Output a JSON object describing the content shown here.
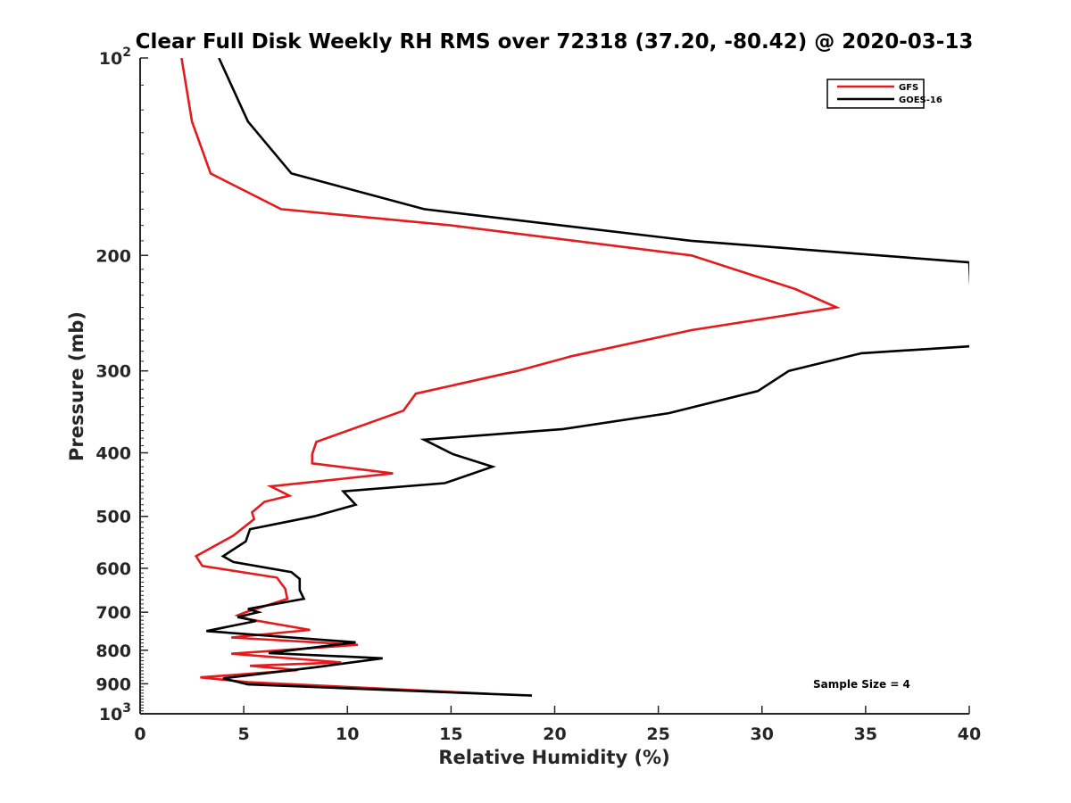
{
  "chart_data": {
    "type": "line",
    "title": "Clear Full Disk Weekly RH RMS over 72318 (37.20, -80.42) @ 2020-03-13",
    "xlabel": "Relative Humidity (%)",
    "ylabel": "Pressure (mb)",
    "xlim": [
      0,
      40
    ],
    "ylim": [
      100,
      1000
    ],
    "y_scale": "log",
    "y_reversed": true,
    "x_ticks": [
      0,
      5,
      10,
      15,
      20,
      25,
      30,
      35,
      40
    ],
    "y_ticks": [
      {
        "value": 100,
        "base": "10",
        "exp": "2"
      },
      {
        "value": 200,
        "label": "200"
      },
      {
        "value": 300,
        "label": "300"
      },
      {
        "value": 400,
        "label": "400"
      },
      {
        "value": 500,
        "label": "500"
      },
      {
        "value": 600,
        "label": "600"
      },
      {
        "value": 700,
        "label": "700"
      },
      {
        "value": 800,
        "label": "800"
      },
      {
        "value": 900,
        "label": "900"
      },
      {
        "value": 1000,
        "base": "10",
        "exp": "3"
      }
    ],
    "grid": false,
    "legend_position": "top-right",
    "annotation": "Sample Size = 4",
    "series": [
      {
        "name": "GFS",
        "color": "#e41a1c",
        "points": [
          [
            2.0,
            100
          ],
          [
            2.5,
            125
          ],
          [
            3.4,
            150
          ],
          [
            6.8,
            170
          ],
          [
            15.0,
            180
          ],
          [
            26.6,
            200
          ],
          [
            31.6,
            225
          ],
          [
            33.6,
            240
          ],
          [
            26.6,
            260
          ],
          [
            20.8,
            285
          ],
          [
            18.2,
            300
          ],
          [
            13.3,
            325
          ],
          [
            12.7,
            345
          ],
          [
            8.5,
            385
          ],
          [
            8.3,
            402
          ],
          [
            8.3,
            415
          ],
          [
            12.2,
            430
          ],
          [
            6.3,
            450
          ],
          [
            7.2,
            465
          ],
          [
            6.0,
            475
          ],
          [
            5.4,
            493
          ],
          [
            5.5,
            505
          ],
          [
            4.5,
            535
          ],
          [
            2.7,
            575
          ],
          [
            3.0,
            595
          ],
          [
            6.6,
            620
          ],
          [
            7.0,
            645
          ],
          [
            7.1,
            668
          ],
          [
            5.1,
            700
          ],
          [
            4.7,
            708
          ],
          [
            5.3,
            718
          ],
          [
            8.2,
            745
          ],
          [
            4.4,
            765
          ],
          [
            10.5,
            785
          ],
          [
            4.4,
            810
          ],
          [
            9.7,
            835
          ],
          [
            5.3,
            845
          ],
          [
            7.6,
            858
          ],
          [
            2.9,
            880
          ],
          [
            5.2,
            895
          ],
          [
            16.8,
            932
          ]
        ]
      },
      {
        "name": "GOES-16",
        "color": "#000000",
        "points": [
          [
            3.8,
            100
          ],
          [
            5.2,
            125
          ],
          [
            7.3,
            150
          ],
          [
            13.7,
            170
          ],
          [
            26.6,
            190
          ],
          [
            40.0,
            205
          ],
          [
            40.2,
            275
          ],
          [
            34.8,
            282
          ],
          [
            31.3,
            300
          ],
          [
            29.8,
            322
          ],
          [
            25.5,
            348
          ],
          [
            20.4,
            368
          ],
          [
            13.7,
            382
          ],
          [
            15.1,
            402
          ],
          [
            17.0,
            420
          ],
          [
            14.7,
            445
          ],
          [
            9.8,
            458
          ],
          [
            10.4,
            480
          ],
          [
            8.4,
            500
          ],
          [
            5.3,
            523
          ],
          [
            5.1,
            546
          ],
          [
            4.0,
            575
          ],
          [
            4.5,
            587
          ],
          [
            7.3,
            608
          ],
          [
            7.7,
            623
          ],
          [
            7.7,
            648
          ],
          [
            7.9,
            668
          ],
          [
            5.2,
            692
          ],
          [
            5.7,
            700
          ],
          [
            4.7,
            712
          ],
          [
            5.6,
            722
          ],
          [
            3.2,
            748
          ],
          [
            10.4,
            778
          ],
          [
            6.2,
            808
          ],
          [
            11.7,
            823
          ],
          [
            8.4,
            850
          ],
          [
            7.0,
            860
          ],
          [
            4.0,
            883
          ],
          [
            5.2,
            902
          ],
          [
            18.9,
            938
          ]
        ]
      }
    ]
  }
}
